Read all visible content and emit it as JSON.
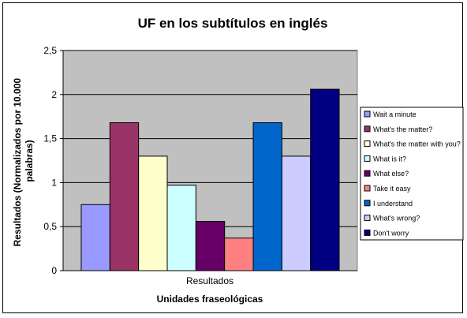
{
  "chart_data": {
    "type": "bar",
    "title": "UF en los subtítulos en inglés",
    "xlabel": "Unidades fraseológicas",
    "ylabel": "Resultados (Normalizados por 10.000 palabras)",
    "ylabel_lines": [
      "Resultados (Normalizados por 10.000",
      "palabras)"
    ],
    "categories": [
      "Resultados"
    ],
    "ylim": [
      0,
      2.5
    ],
    "yticks": [
      "0",
      "0,5",
      "1",
      "1,5",
      "2",
      "2,5"
    ],
    "ytick_values": [
      0,
      0.5,
      1,
      1.5,
      2,
      2.5
    ],
    "grid": true,
    "legend_position": "right",
    "plot_background": "#c0c0c0",
    "series": [
      {
        "name": "Wait a minute",
        "values": [
          0.75
        ],
        "color": "#9999ff"
      },
      {
        "name": "What's the matter?",
        "values": [
          1.68
        ],
        "color": "#993366"
      },
      {
        "name": "What's the matter with you?",
        "values": [
          1.3
        ],
        "color": "#ffffcc"
      },
      {
        "name": "What is it?",
        "values": [
          0.97
        ],
        "color": "#ccffff"
      },
      {
        "name": "What else?",
        "values": [
          0.56
        ],
        "color": "#660066"
      },
      {
        "name": "Take it easy",
        "values": [
          0.37
        ],
        "color": "#ff8080"
      },
      {
        "name": "I understand",
        "values": [
          1.68
        ],
        "color": "#0066cc"
      },
      {
        "name": "What's wrong?",
        "values": [
          1.3
        ],
        "color": "#ccccff"
      },
      {
        "name": "Don't worry",
        "values": [
          2.06
        ],
        "color": "#000080"
      }
    ]
  }
}
